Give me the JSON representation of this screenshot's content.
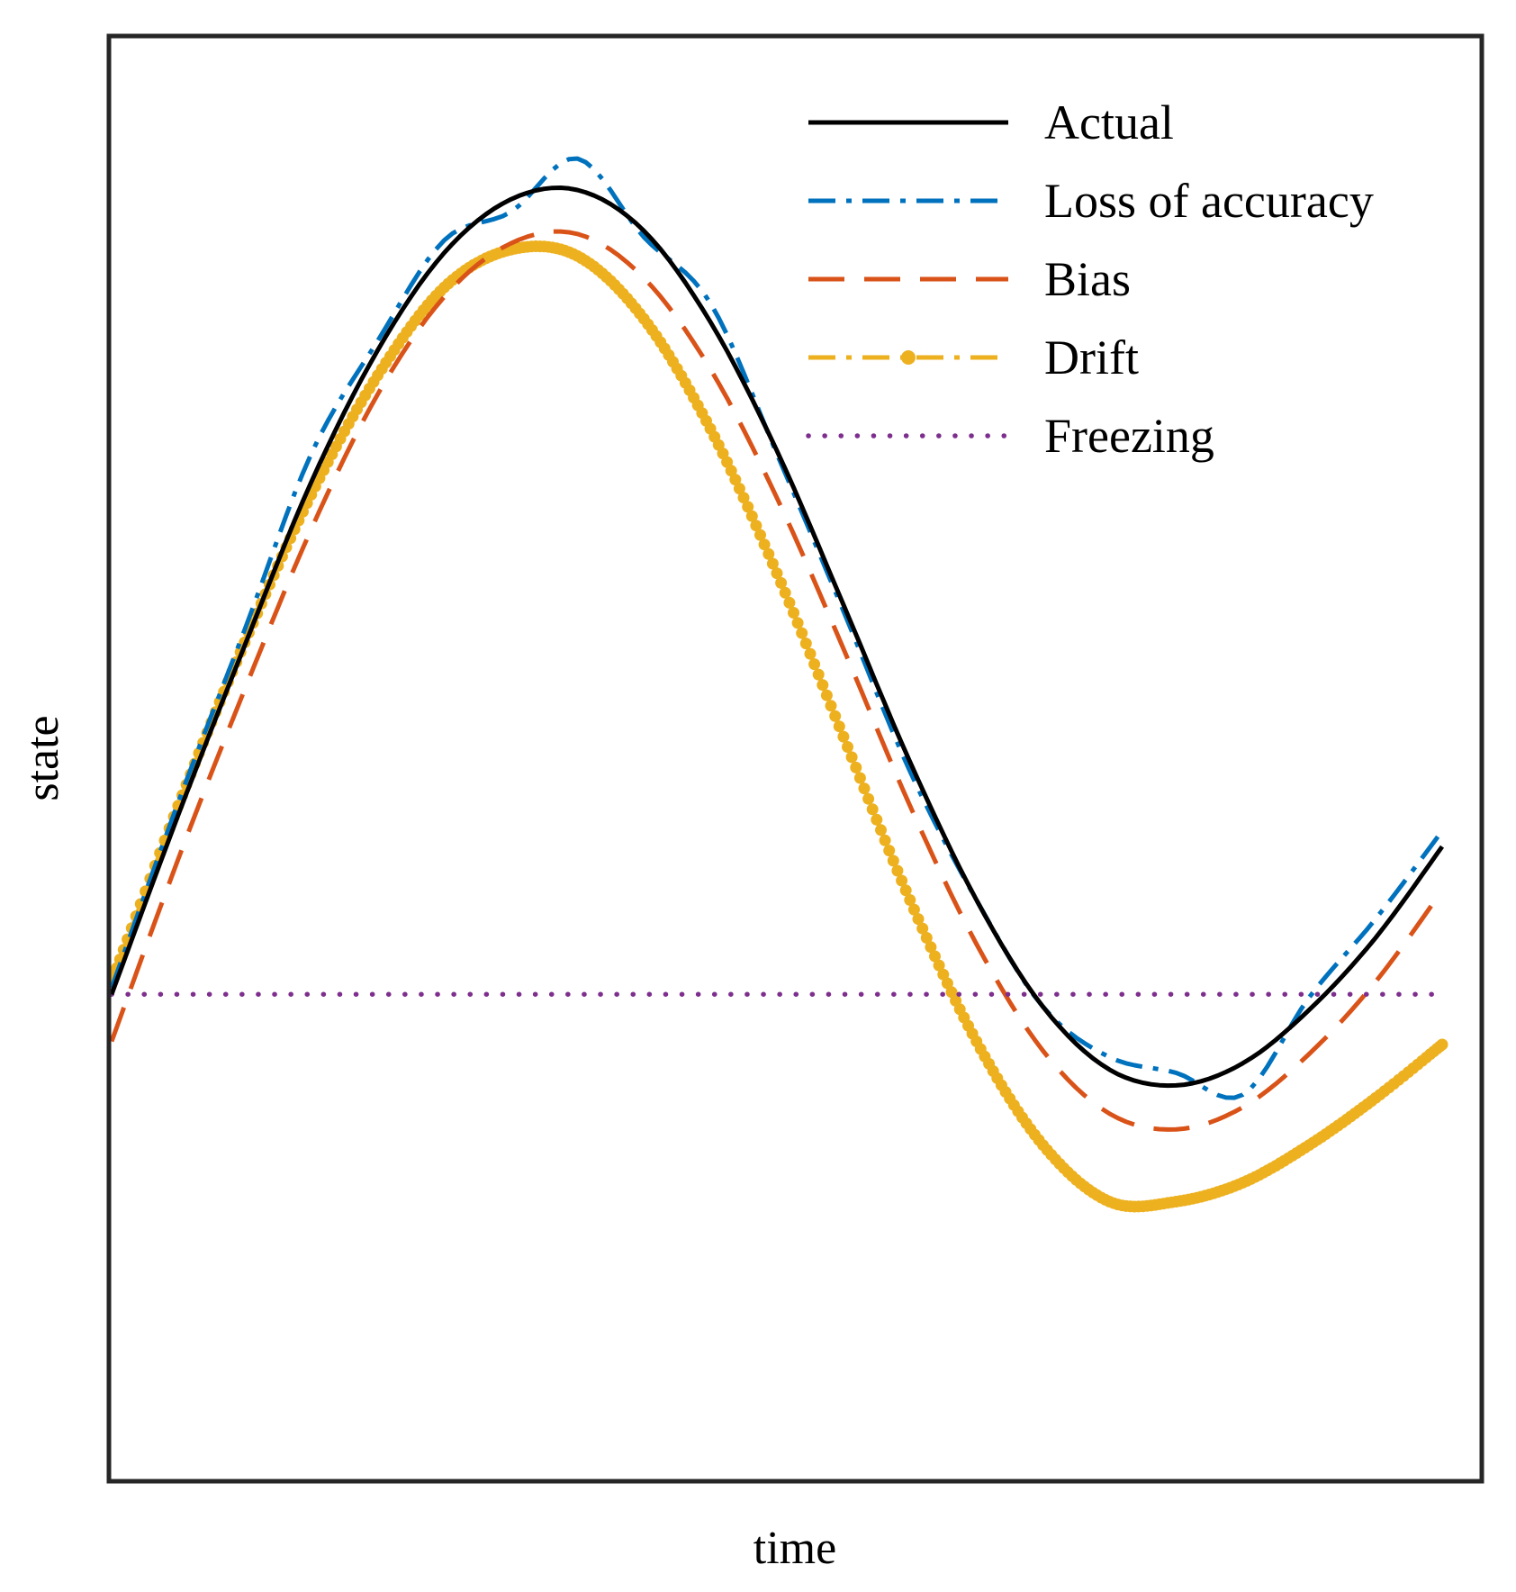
{
  "chart_data": {
    "type": "line",
    "title": "",
    "xlabel": "time",
    "ylabel": "state",
    "x_ticks": [],
    "y_ticks": [],
    "xlim": [
      0,
      10
    ],
    "ylim": [
      -1.55,
      3.05
    ],
    "grid": false,
    "legend_position": "top-right",
    "x": [
      0,
      0.5,
      1,
      1.5,
      2,
      2.5,
      3,
      3.5,
      4,
      4.5,
      5,
      5.5,
      6,
      6.5,
      7,
      7.5,
      8,
      8.5,
      9,
      9.5,
      10
    ],
    "series": [
      {
        "name": "Actual",
        "color": "#000000",
        "style": "solid",
        "values": [
          0.0,
          0.57,
          1.11,
          1.63,
          2.05,
          2.36,
          2.53,
          2.56,
          2.43,
          2.14,
          1.73,
          1.24,
          0.74,
          0.3,
          -0.04,
          -0.24,
          -0.29,
          -0.22,
          -0.05,
          0.18,
          0.47
        ]
      },
      {
        "name": "Loss of accuracy",
        "color": "#0072BD",
        "style": "dashdot",
        "values": [
          0.02,
          0.61,
          1.16,
          1.72,
          2.08,
          2.4,
          2.49,
          2.66,
          2.41,
          2.2,
          1.72,
          1.22,
          0.71,
          0.3,
          -0.04,
          -0.2,
          -0.25,
          -0.32,
          -0.01,
          0.24,
          0.52
        ]
      },
      {
        "name": "Bias",
        "color": "#D95319",
        "style": "dashed",
        "values": [
          -0.15,
          0.43,
          0.97,
          1.48,
          1.91,
          2.22,
          2.39,
          2.42,
          2.28,
          1.99,
          1.58,
          1.1,
          0.6,
          0.16,
          -0.18,
          -0.38,
          -0.43,
          -0.36,
          -0.19,
          0.04,
          0.33
        ]
      },
      {
        "name": "Drift",
        "color": "#EDB120",
        "style": "dashdot-dot-marker",
        "values": [
          0.04,
          0.6,
          1.12,
          1.59,
          1.97,
          2.25,
          2.37,
          2.35,
          2.15,
          1.8,
          1.34,
          0.82,
          0.3,
          -0.15,
          -0.48,
          -0.66,
          -0.66,
          -0.6,
          -0.48,
          -0.33,
          -0.16
        ]
      },
      {
        "name": "Freezing",
        "color": "#7E2F8E",
        "style": "dotted",
        "values": [
          0,
          0,
          0,
          0,
          0,
          0,
          0,
          0,
          0,
          0,
          0,
          0,
          0,
          0,
          0,
          0,
          0,
          0,
          0,
          0,
          0
        ]
      }
    ]
  }
}
